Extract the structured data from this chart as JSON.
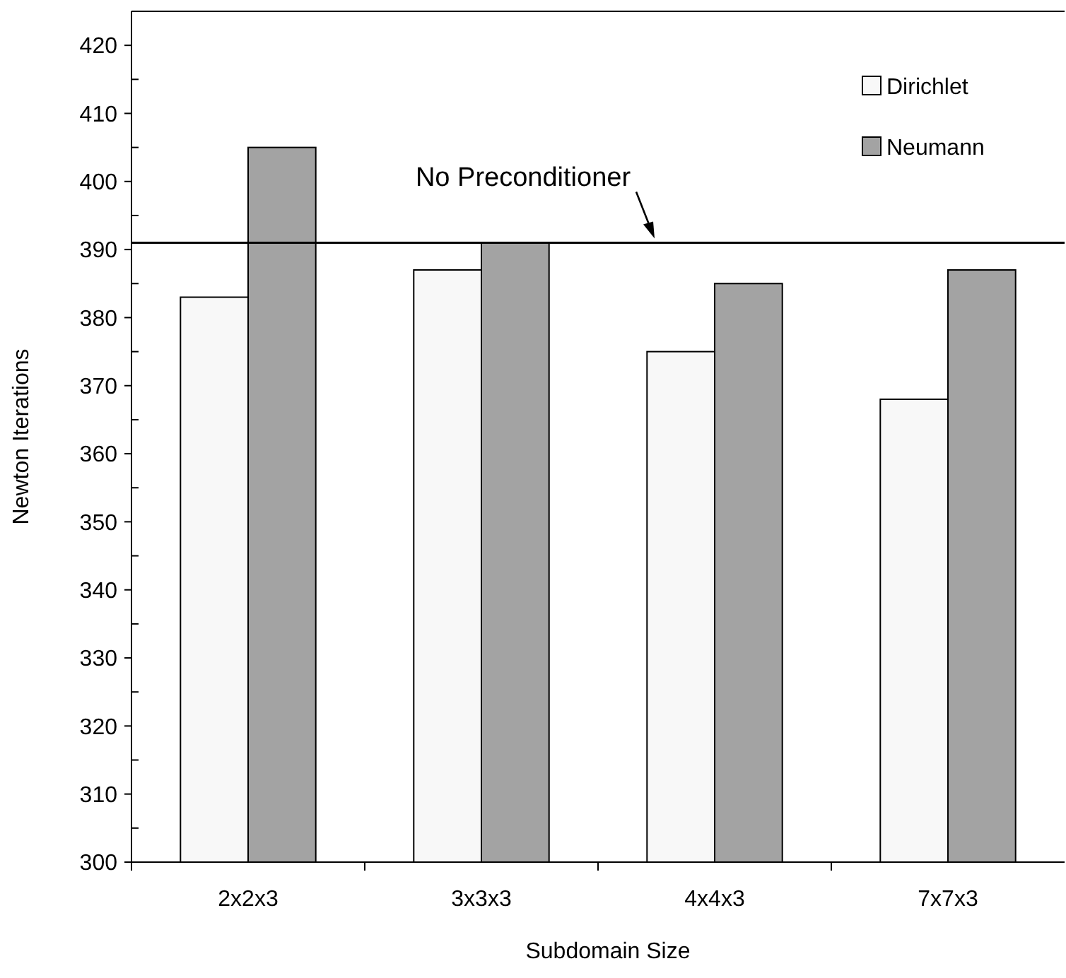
{
  "chart_data": {
    "type": "bar",
    "xlabel": "Subdomain Size",
    "ylabel": "Newton Iterations",
    "categories": [
      "2x2x3",
      "3x3x3",
      "4x4x3",
      "7x7x3"
    ],
    "series": [
      {
        "name": "Dirichlet",
        "color": "#f8f8f8",
        "values": [
          383,
          387,
          375,
          368
        ]
      },
      {
        "name": "Neumann",
        "color": "#a3a3a3",
        "values": [
          405,
          391,
          385,
          387
        ]
      }
    ],
    "ylim": [
      300,
      425
    ],
    "yticks": [
      300,
      {
        "value": 305,
        "label": null
      },
      310,
      {
        "value": 315,
        "label": null
      },
      320,
      {
        "value": 325,
        "label": null
      },
      330,
      {
        "value": 335,
        "label": null
      },
      340,
      {
        "value": 345,
        "label": null
      },
      350,
      {
        "value": 355,
        "label": null
      },
      360,
      {
        "value": 365,
        "label": null
      },
      370,
      {
        "value": 375,
        "label": null
      },
      380,
      {
        "value": 385,
        "label": null
      },
      390,
      {
        "value": 395,
        "label": null
      },
      400,
      {
        "value": 405,
        "label": null
      },
      410,
      {
        "value": 415,
        "label": null
      },
      420
    ],
    "ref_lines": [
      {
        "axis": "y",
        "value": 391,
        "label": "No Preconditioner",
        "color": "#000000"
      }
    ],
    "grid": false,
    "legend": "top right"
  }
}
